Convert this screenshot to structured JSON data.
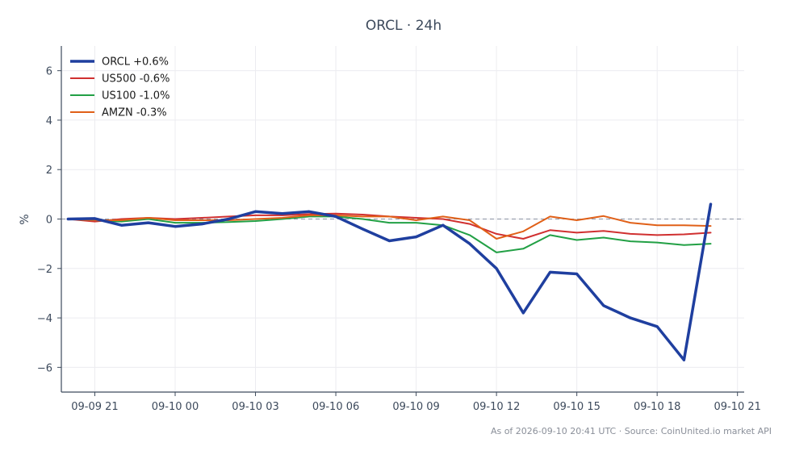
{
  "chart_data": {
    "type": "line",
    "title": "ORCL · 24h",
    "xlabel": "",
    "ylabel": "%",
    "xlim": [
      "2026-09-09 19:45",
      "2026-09-10 21:15"
    ],
    "ylim": [
      -7,
      7
    ],
    "x_ticks": [
      {
        "time": "2026-09-09 21:00",
        "label": "09-09 21"
      },
      {
        "time": "2026-09-10 00:00",
        "label": "09-10 00"
      },
      {
        "time": "2026-09-10 03:00",
        "label": "09-10 03"
      },
      {
        "time": "2026-09-10 06:00",
        "label": "09-10 06"
      },
      {
        "time": "2026-09-10 09:00",
        "label": "09-10 09"
      },
      {
        "time": "2026-09-10 12:00",
        "label": "09-10 12"
      },
      {
        "time": "2026-09-10 15:00",
        "label": "09-10 15"
      },
      {
        "time": "2026-09-10 18:00",
        "label": "09-10 18"
      },
      {
        "time": "2026-09-10 21:00",
        "label": "09-10 21"
      }
    ],
    "y_ticks": [
      {
        "value": 6,
        "label": "6"
      },
      {
        "value": 4,
        "label": "4"
      },
      {
        "value": 2,
        "label": "2"
      },
      {
        "value": 0,
        "label": "0"
      },
      {
        "value": -2,
        "label": "−2"
      },
      {
        "value": -4,
        "label": "−4"
      },
      {
        "value": -6,
        "label": "−6"
      }
    ],
    "grid": true,
    "legend_position": "top-left",
    "zero_line": true,
    "x": [
      "2026-09-09 20:00",
      "2026-09-09 21:00",
      "2026-09-09 22:00",
      "2026-09-09 23:00",
      "2026-09-10 00:00",
      "2026-09-10 01:00",
      "2026-09-10 02:00",
      "2026-09-10 03:00",
      "2026-09-10 04:00",
      "2026-09-10 05:00",
      "2026-09-10 06:00",
      "2026-09-10 07:00",
      "2026-09-10 08:00",
      "2026-09-10 09:00",
      "2026-09-10 10:00",
      "2026-09-10 11:00",
      "2026-09-10 12:00",
      "2026-09-10 13:00",
      "2026-09-10 14:00",
      "2026-09-10 15:00",
      "2026-09-10 16:00",
      "2026-09-10 17:00",
      "2026-09-10 18:00",
      "2026-09-10 19:00",
      "2026-09-10 20:00"
    ],
    "series": [
      {
        "name": "ORCL +0.6%",
        "color": "#1f3f9f",
        "width": 3.5,
        "values": [
          0.0,
          0.02,
          -0.25,
          -0.15,
          -0.3,
          -0.2,
          0.0,
          0.3,
          0.22,
          0.3,
          0.1,
          -0.4,
          -0.88,
          -0.72,
          -0.25,
          -1.0,
          -2.0,
          -3.8,
          -2.15,
          -2.22,
          -3.5,
          -4.0,
          -4.35,
          -5.7,
          0.6
        ]
      },
      {
        "name": "US500 -0.6%",
        "color": "#d03030",
        "width": 2,
        "values": [
          0.0,
          -0.1,
          0.0,
          0.05,
          0.0,
          0.05,
          0.1,
          0.15,
          0.15,
          0.2,
          0.22,
          0.18,
          0.1,
          0.05,
          0.0,
          -0.2,
          -0.6,
          -0.8,
          -0.45,
          -0.55,
          -0.48,
          -0.6,
          -0.65,
          -0.62,
          -0.55
        ]
      },
      {
        "name": "US100 -1.0%",
        "color": "#22a045",
        "width": 2,
        "values": [
          0.0,
          -0.05,
          -0.1,
          0.0,
          -0.15,
          -0.15,
          -0.12,
          -0.08,
          0.0,
          0.1,
          0.1,
          0.0,
          -0.15,
          -0.15,
          -0.25,
          -0.65,
          -1.35,
          -1.2,
          -0.65,
          -0.85,
          -0.75,
          -0.9,
          -0.95,
          -1.05,
          -1.0
        ]
      },
      {
        "name": "AMZN -0.3%",
        "color": "#e06018",
        "width": 2,
        "values": [
          0.0,
          -0.05,
          -0.05,
          0.05,
          -0.05,
          -0.05,
          -0.05,
          0.0,
          0.05,
          0.15,
          0.15,
          0.1,
          0.1,
          -0.05,
          0.1,
          -0.05,
          -0.8,
          -0.5,
          0.1,
          -0.05,
          0.12,
          -0.15,
          -0.25,
          -0.25,
          -0.28
        ]
      }
    ],
    "footer": "As of 2026-09-10 20:41 UTC · Source: CoinUnited.io market API"
  }
}
